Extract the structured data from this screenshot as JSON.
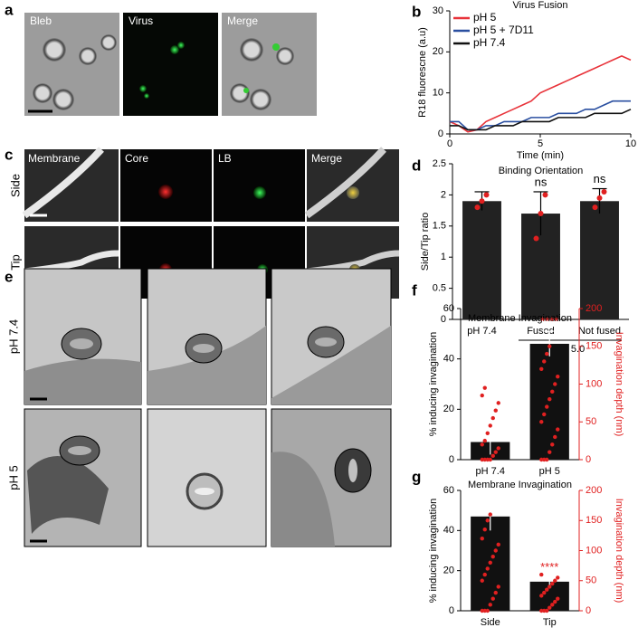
{
  "panel_labels": [
    "a",
    "b",
    "c",
    "d",
    "e",
    "f",
    "g"
  ],
  "panel_a": {
    "columns": [
      "Bleb",
      "Virus",
      "Merge"
    ]
  },
  "panel_c": {
    "columns": [
      "Membrane",
      "Core",
      "LB",
      "Merge"
    ],
    "rows": [
      "Side",
      "Tip"
    ]
  },
  "panel_e": {
    "rows": [
      "pH 7.4",
      "pH 5"
    ]
  },
  "chart_data": [
    {
      "type": "line",
      "title": "Virus Fusion",
      "x_label": "Time (min)",
      "y_label": "R18 fluorescne (a.u)",
      "x": [
        0,
        0.5,
        1,
        1.5,
        2,
        2.5,
        3,
        3.5,
        4,
        4.5,
        5,
        5.5,
        6,
        6.5,
        7,
        7.5,
        8,
        8.5,
        9,
        9.5,
        10
      ],
      "xlim": [
        0,
        10
      ],
      "xticks": [
        0,
        5,
        10
      ],
      "ylim": [
        0,
        30
      ],
      "yticks": [
        0,
        10,
        20,
        30
      ],
      "legend": "upper left",
      "series": [
        {
          "name": "pH 5",
          "color": "#e8333a",
          "values": [
            3,
            2,
            0.5,
            1,
            3,
            4,
            5,
            6,
            7,
            8,
            10,
            11,
            12,
            13,
            14,
            15,
            16,
            17,
            18,
            19,
            18
          ]
        },
        {
          "name": "pH 5 + 7D11",
          "color": "#2a4fa0",
          "values": [
            3,
            3,
            1,
            1,
            2,
            2,
            3,
            3,
            3,
            4,
            4,
            4,
            5,
            5,
            5,
            6,
            6,
            7,
            8,
            8,
            8
          ]
        },
        {
          "name": "pH 7.4",
          "color": "#111111",
          "values": [
            2,
            2,
            1,
            1,
            1,
            2,
            2,
            2,
            3,
            3,
            3,
            3,
            4,
            4,
            4,
            4,
            5,
            5,
            5,
            5,
            6
          ]
        }
      ]
    },
    {
      "type": "bar",
      "title": "Binding Orientation",
      "y_label": "Side/Tip ratio",
      "categories": [
        "pH 7.4",
        "Fused",
        "Not fused"
      ],
      "values": [
        1.9,
        1.7,
        1.9
      ],
      "errors": [
        0.15,
        0.35,
        0.2
      ],
      "points": [
        [
          1.8,
          1.9,
          2.0
        ],
        [
          1.3,
          1.7,
          2.0
        ],
        [
          1.8,
          1.95,
          2.05
        ]
      ],
      "annotations": [
        null,
        "ns",
        "ns"
      ],
      "group_label": "pH 5.0",
      "ylim": [
        0,
        2.5
      ],
      "yticks": [
        0,
        0.5,
        1,
        1.5,
        2,
        2.5
      ],
      "color": "#222222",
      "point_color": "#e02020"
    },
    {
      "type": "bar",
      "title": "Membrane Invagination",
      "y_label": "% inducing invagination",
      "y2_label": "Invagination depth (nm)",
      "categories": [
        "pH 7.4",
        "pH 5"
      ],
      "values": [
        7,
        46
      ],
      "errors": [
        5,
        5
      ],
      "annotations": [
        null,
        "****"
      ],
      "ylim": [
        0,
        60
      ],
      "yticks": [
        0,
        20,
        40,
        60
      ],
      "y2lim": [
        0,
        200
      ],
      "y2ticks": [
        0,
        50,
        100,
        150,
        200
      ],
      "color": "#111111",
      "y2_color": "#e02020",
      "depth_points": [
        [
          0,
          0,
          0,
          0,
          5,
          10,
          15,
          20,
          25,
          35,
          45,
          55,
          65,
          75,
          85,
          95
        ],
        [
          0,
          0,
          0,
          10,
          20,
          30,
          40,
          50,
          60,
          70,
          80,
          90,
          100,
          110,
          120,
          130,
          140,
          150
        ]
      ]
    },
    {
      "type": "bar",
      "title": "Membrane Invagination",
      "y_label": "% inducing invagination",
      "y2_label": "Invagination depth (nm)",
      "categories": [
        "Side",
        "Tip"
      ],
      "values": [
        47,
        14.5
      ],
      "errors": [
        7,
        2.5
      ],
      "annotations": [
        null,
        "****"
      ],
      "ylim": [
        0,
        60
      ],
      "yticks": [
        0,
        20,
        40,
        60
      ],
      "y2lim": [
        0,
        200
      ],
      "y2ticks": [
        0,
        50,
        100,
        150,
        200
      ],
      "color": "#111111",
      "y2_color": "#e02020",
      "depth_points": [
        [
          0,
          0,
          0,
          10,
          20,
          30,
          40,
          50,
          60,
          70,
          80,
          90,
          100,
          110,
          120,
          135,
          150,
          160
        ],
        [
          0,
          0,
          0,
          5,
          10,
          15,
          20,
          25,
          30,
          35,
          40,
          45,
          50,
          55,
          60
        ]
      ]
    }
  ]
}
